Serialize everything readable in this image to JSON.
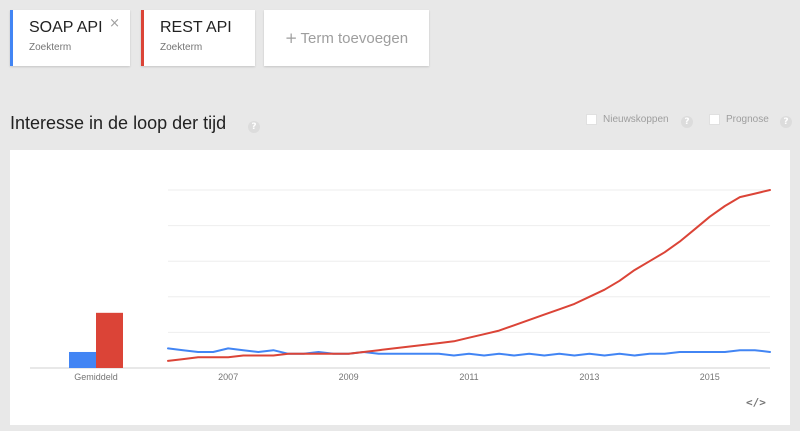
{
  "terms": [
    {
      "name": "SOAP API",
      "type": "Zoekterm",
      "color": "#4285f4",
      "close": "×"
    },
    {
      "name": "REST API",
      "type": "Zoekterm",
      "color": "#db4437"
    }
  ],
  "add_term": {
    "plus": "+",
    "label": "Term toevoegen"
  },
  "section": {
    "title": "Interesse in de loop der tijd",
    "help": "?"
  },
  "options": [
    {
      "label": "Nieuwskoppen",
      "help": "?"
    },
    {
      "label": "Prognose",
      "help": "?"
    }
  ],
  "embed_icon": "code-embed-icon",
  "embed_label": "</>",
  "chart_data": {
    "type": "line",
    "xlabel": "",
    "ylabel": "",
    "ylim": [
      0,
      100
    ],
    "x_tick_labels": [
      "2007",
      "2009",
      "2011",
      "2013",
      "2015"
    ],
    "x_tick_years": [
      2007,
      2009,
      2011,
      2013,
      2015
    ],
    "xlim": [
      2006.0,
      2016.0
    ],
    "grid": true,
    "average": {
      "label": "Gemiddeld",
      "bars": [
        {
          "series": "SOAP API",
          "value": 9,
          "color": "#4285f4"
        },
        {
          "series": "REST API",
          "value": 31,
          "color": "#db4437"
        }
      ]
    },
    "series": [
      {
        "name": "SOAP API",
        "color": "#4285f4",
        "x": [
          2006.0,
          2006.25,
          2006.5,
          2006.75,
          2007.0,
          2007.25,
          2007.5,
          2007.75,
          2008.0,
          2008.25,
          2008.5,
          2008.75,
          2009.0,
          2009.25,
          2009.5,
          2009.75,
          2010.0,
          2010.25,
          2010.5,
          2010.75,
          2011.0,
          2011.25,
          2011.5,
          2011.75,
          2012.0,
          2012.25,
          2012.5,
          2012.75,
          2013.0,
          2013.25,
          2013.5,
          2013.75,
          2014.0,
          2014.25,
          2014.5,
          2014.75,
          2015.0,
          2015.25,
          2015.5,
          2015.75,
          2016.0
        ],
        "y": [
          11,
          10,
          9,
          9,
          11,
          10,
          9,
          10,
          8,
          8,
          9,
          8,
          8,
          9,
          8,
          8,
          8,
          8,
          8,
          7,
          8,
          7,
          8,
          7,
          8,
          7,
          8,
          7,
          8,
          7,
          8,
          7,
          8,
          8,
          9,
          9,
          9,
          9,
          10,
          10,
          9
        ]
      },
      {
        "name": "REST API",
        "color": "#db4437",
        "x": [
          2006.0,
          2006.25,
          2006.5,
          2006.75,
          2007.0,
          2007.25,
          2007.5,
          2007.75,
          2008.0,
          2008.25,
          2008.5,
          2008.75,
          2009.0,
          2009.25,
          2009.5,
          2009.75,
          2010.0,
          2010.25,
          2010.5,
          2010.75,
          2011.0,
          2011.25,
          2011.5,
          2011.75,
          2012.0,
          2012.25,
          2012.5,
          2012.75,
          2013.0,
          2013.25,
          2013.5,
          2013.75,
          2014.0,
          2014.25,
          2014.5,
          2014.75,
          2015.0,
          2015.25,
          2015.5,
          2015.75,
          2016.0
        ],
        "y": [
          4,
          5,
          6,
          6,
          6,
          7,
          7,
          7,
          8,
          8,
          8,
          8,
          8,
          9,
          10,
          11,
          12,
          13,
          14,
          15,
          17,
          19,
          21,
          24,
          27,
          30,
          33,
          36,
          40,
          44,
          49,
          55,
          60,
          65,
          71,
          78,
          85,
          91,
          96,
          98,
          100
        ]
      }
    ]
  }
}
